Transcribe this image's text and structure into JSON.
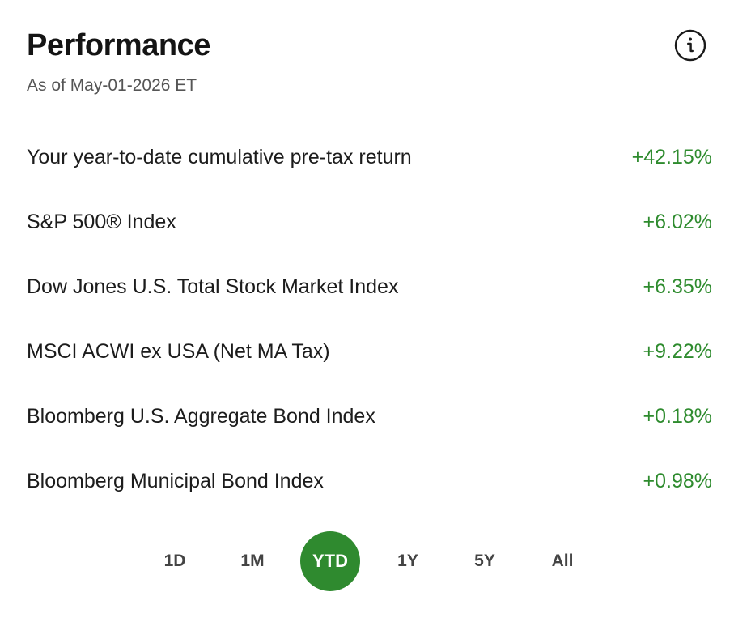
{
  "header": {
    "title": "Performance",
    "as_of": "As of May-01-2026 ET",
    "info_icon": "info-icon"
  },
  "colors": {
    "positive": "#2e8b2e",
    "accent": "#2f8a2f"
  },
  "rows": [
    {
      "label": "Your year-to-date cumulative pre-tax return",
      "value": "+42.15%"
    },
    {
      "label": "S&P 500® Index",
      "value": "+6.02%"
    },
    {
      "label": "Dow Jones U.S. Total Stock Market Index",
      "value": "+6.35%"
    },
    {
      "label": "MSCI ACWI ex USA (Net MA Tax)",
      "value": "+9.22%"
    },
    {
      "label": "Bloomberg U.S. Aggregate Bond Index",
      "value": "+0.18%"
    },
    {
      "label": "Bloomberg Municipal Bond Index",
      "value": "+0.98%"
    }
  ],
  "periods": {
    "selected": "YTD",
    "items": [
      {
        "label": "1D"
      },
      {
        "label": "1M"
      },
      {
        "label": "YTD"
      },
      {
        "label": "1Y"
      },
      {
        "label": "5Y"
      },
      {
        "label": "All"
      }
    ]
  }
}
